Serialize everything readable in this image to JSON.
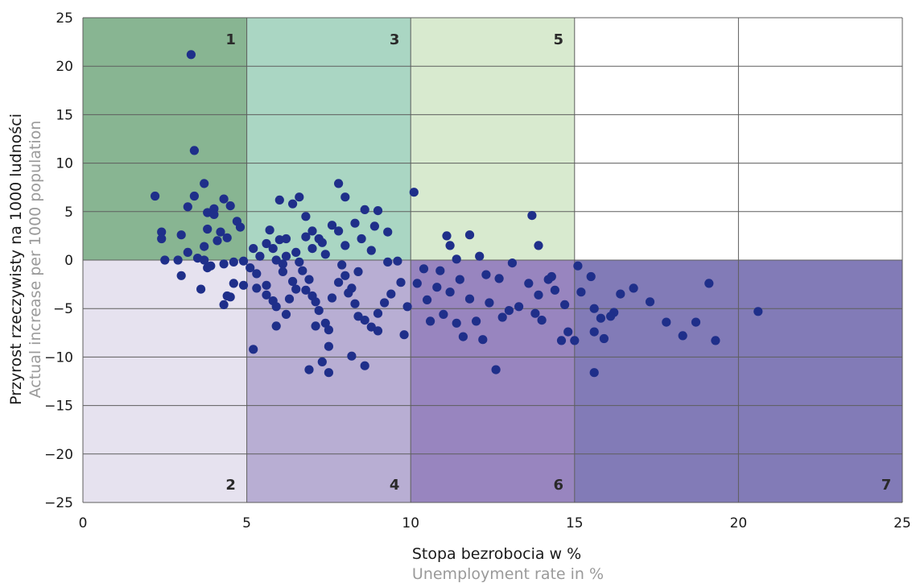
{
  "chart_data": {
    "type": "scatter",
    "xlabel": "Stopa bezrobocia w %",
    "xlabel_en": "Unemployment rate in %",
    "ylabel": "Przyrost rzeczywisty na 1000 ludności",
    "ylabel_en": "Actual increase per 1000 population",
    "xlim": [
      0,
      25
    ],
    "ylim": [
      -25,
      25
    ],
    "x_ticks": [
      "0",
      "5",
      "10",
      "15",
      "20",
      "25"
    ],
    "y_ticks": [
      "25",
      "20",
      "15",
      "10",
      "5",
      "0",
      "−5",
      "−10",
      "−15",
      "−20",
      "−25"
    ],
    "grid": true,
    "point_color": "#1f2f8a",
    "regions": [
      {
        "label": "1",
        "x": [
          0,
          5
        ],
        "y": [
          0,
          25
        ],
        "color": "#88b592"
      },
      {
        "label": "3",
        "x": [
          5,
          10
        ],
        "y": [
          0,
          25
        ],
        "color": "#aad6c3"
      },
      {
        "label": "5",
        "x": [
          10,
          15
        ],
        "y": [
          0,
          25
        ],
        "color": "#d8eacf"
      },
      {
        "label": "2",
        "x": [
          0,
          5
        ],
        "y": [
          -25,
          0
        ],
        "color": "#e6e2ef"
      },
      {
        "label": "4",
        "x": [
          5,
          10
        ],
        "y": [
          -25,
          0
        ],
        "color": "#b8aed3"
      },
      {
        "label": "6",
        "x": [
          10,
          15
        ],
        "y": [
          -25,
          0
        ],
        "color": "#9885bf"
      },
      {
        "label": "7",
        "x": [
          15,
          25
        ],
        "y": [
          -25,
          0
        ],
        "color": "#827bb7"
      }
    ],
    "points": [
      [
        3.3,
        21.2
      ],
      [
        3.4,
        11.3
      ],
      [
        2.2,
        6.6
      ],
      [
        3.2,
        5.5
      ],
      [
        3.7,
        7.9
      ],
      [
        3.4,
        6.6
      ],
      [
        3.8,
        4.9
      ],
      [
        4.0,
        5.3
      ],
      [
        4.0,
        4.7
      ],
      [
        4.3,
        6.3
      ],
      [
        4.5,
        5.6
      ],
      [
        4.7,
        4.0
      ],
      [
        2.4,
        2.9
      ],
      [
        2.4,
        2.2
      ],
      [
        3.0,
        2.6
      ],
      [
        3.8,
        3.2
      ],
      [
        4.2,
        2.9
      ],
      [
        4.1,
        2.0
      ],
      [
        3.7,
        1.4
      ],
      [
        4.4,
        2.3
      ],
      [
        4.8,
        3.4
      ],
      [
        3.2,
        0.8
      ],
      [
        2.5,
        0.0
      ],
      [
        2.9,
        0.0
      ],
      [
        3.5,
        0.2
      ],
      [
        3.7,
        0.0
      ],
      [
        3.9,
        -0.6
      ],
      [
        3.8,
        -0.8
      ],
      [
        4.3,
        -0.4
      ],
      [
        4.6,
        -0.2
      ],
      [
        4.9,
        -0.1
      ],
      [
        3.0,
        -1.6
      ],
      [
        3.6,
        -3.0
      ],
      [
        4.6,
        -2.4
      ],
      [
        4.9,
        -2.6
      ],
      [
        4.5,
        -3.8
      ],
      [
        4.3,
        -4.6
      ],
      [
        4.4,
        -3.7
      ],
      [
        5.2,
        -9.2
      ],
      [
        5.2,
        1.2
      ],
      [
        5.4,
        0.4
      ],
      [
        5.6,
        1.7
      ],
      [
        5.8,
        1.2
      ],
      [
        6.0,
        2.1
      ],
      [
        6.2,
        2.2
      ],
      [
        5.7,
        3.1
      ],
      [
        6.0,
        6.2
      ],
      [
        6.4,
        5.8
      ],
      [
        6.6,
        6.5
      ],
      [
        6.8,
        4.5
      ],
      [
        7.0,
        3.0
      ],
      [
        6.8,
        2.4
      ],
      [
        7.2,
        2.2
      ],
      [
        7.6,
        3.6
      ],
      [
        7.8,
        3.0
      ],
      [
        7.3,
        1.8
      ],
      [
        7.0,
        1.2
      ],
      [
        6.5,
        0.8
      ],
      [
        6.2,
        0.4
      ],
      [
        5.9,
        0.0
      ],
      [
        6.1,
        -0.4
      ],
      [
        6.6,
        -0.2
      ],
      [
        7.4,
        0.6
      ],
      [
        7.8,
        7.9
      ],
      [
        8.0,
        6.5
      ],
      [
        8.3,
        3.8
      ],
      [
        8.6,
        5.2
      ],
      [
        9.0,
        5.1
      ],
      [
        8.9,
        3.5
      ],
      [
        9.3,
        2.9
      ],
      [
        8.5,
        2.2
      ],
      [
        8.0,
        1.5
      ],
      [
        8.8,
        1.0
      ],
      [
        9.3,
        -0.2
      ],
      [
        9.6,
        -0.1
      ],
      [
        5.1,
        -0.8
      ],
      [
        5.3,
        -1.4
      ],
      [
        5.6,
        -2.6
      ],
      [
        5.3,
        -2.9
      ],
      [
        5.6,
        -3.6
      ],
      [
        5.8,
        -4.2
      ],
      [
        5.9,
        -4.8
      ],
      [
        5.9,
        -6.8
      ],
      [
        6.3,
        -4.0
      ],
      [
        6.4,
        -2.2
      ],
      [
        6.7,
        -1.1
      ],
      [
        6.9,
        -2.0
      ],
      [
        6.8,
        -3.1
      ],
      [
        7.0,
        -3.7
      ],
      [
        7.1,
        -4.3
      ],
      [
        7.2,
        -5.2
      ],
      [
        7.4,
        -6.5
      ],
      [
        7.5,
        -7.2
      ],
      [
        7.5,
        -8.9
      ],
      [
        7.3,
        -10.5
      ],
      [
        6.9,
        -11.3
      ],
      [
        7.5,
        -11.6
      ],
      [
        7.8,
        -2.3
      ],
      [
        8.0,
        -1.6
      ],
      [
        8.2,
        -2.9
      ],
      [
        8.3,
        -4.5
      ],
      [
        8.4,
        -5.8
      ],
      [
        8.6,
        -6.2
      ],
      [
        8.8,
        -6.9
      ],
      [
        9.0,
        -7.3
      ],
      [
        8.2,
        -9.9
      ],
      [
        8.6,
        -10.9
      ],
      [
        9.2,
        -4.4
      ],
      [
        9.4,
        -3.5
      ],
      [
        9.7,
        -2.3
      ],
      [
        9.8,
        -7.7
      ],
      [
        9.9,
        -4.8
      ],
      [
        6.1,
        -1.2
      ],
      [
        6.5,
        -3.0
      ],
      [
        7.9,
        -0.5
      ],
      [
        8.1,
        -3.4
      ],
      [
        8.4,
        -1.2
      ],
      [
        9.0,
        -5.5
      ],
      [
        7.6,
        -3.9
      ],
      [
        6.2,
        -5.6
      ],
      [
        7.1,
        -6.8
      ],
      [
        10.1,
        7.0
      ],
      [
        11.1,
        2.5
      ],
      [
        11.2,
        1.5
      ],
      [
        11.8,
        2.6
      ],
      [
        12.1,
        0.4
      ],
      [
        11.4,
        0.1
      ],
      [
        13.7,
        4.6
      ],
      [
        13.9,
        1.5
      ],
      [
        10.2,
        -2.4
      ],
      [
        10.5,
        -4.1
      ],
      [
        10.8,
        -2.8
      ],
      [
        11.0,
        -5.6
      ],
      [
        11.2,
        -3.3
      ],
      [
        11.4,
        -6.5
      ],
      [
        11.6,
        -7.9
      ],
      [
        11.8,
        -4.0
      ],
      [
        12.0,
        -6.3
      ],
      [
        12.2,
        -8.2
      ],
      [
        12.4,
        -4.4
      ],
      [
        12.6,
        -11.3
      ],
      [
        12.7,
        -1.9
      ],
      [
        13.0,
        -5.2
      ],
      [
        13.3,
        -4.8
      ],
      [
        13.6,
        -2.4
      ],
      [
        13.8,
        -5.5
      ],
      [
        14.0,
        -6.2
      ],
      [
        14.2,
        -2.0
      ],
      [
        14.4,
        -3.1
      ],
      [
        14.6,
        -8.3
      ],
      [
        14.8,
        -7.4
      ],
      [
        10.4,
        -0.9
      ],
      [
        10.9,
        -1.1
      ],
      [
        11.5,
        -2.0
      ],
      [
        12.3,
        -1.5
      ],
      [
        13.1,
        -0.3
      ],
      [
        13.9,
        -3.6
      ],
      [
        14.3,
        -1.7
      ],
      [
        14.7,
        -4.6
      ],
      [
        10.6,
        -6.3
      ],
      [
        12.8,
        -5.9
      ],
      [
        15.1,
        -0.6
      ],
      [
        15.5,
        -1.7
      ],
      [
        15.2,
        -3.3
      ],
      [
        15.6,
        -5.0
      ],
      [
        15.8,
        -6.0
      ],
      [
        16.2,
        -5.4
      ],
      [
        16.4,
        -3.5
      ],
      [
        16.8,
        -2.9
      ],
      [
        17.3,
        -4.3
      ],
      [
        15.6,
        -7.4
      ],
      [
        15.9,
        -8.1
      ],
      [
        15.6,
        -11.6
      ],
      [
        17.8,
        -6.4
      ],
      [
        18.3,
        -7.8
      ],
      [
        18.7,
        -6.4
      ],
      [
        19.1,
        -2.4
      ],
      [
        19.3,
        -8.3
      ],
      [
        20.6,
        -5.3
      ],
      [
        15.0,
        -8.3
      ],
      [
        16.1,
        -5.8
      ]
    ]
  }
}
